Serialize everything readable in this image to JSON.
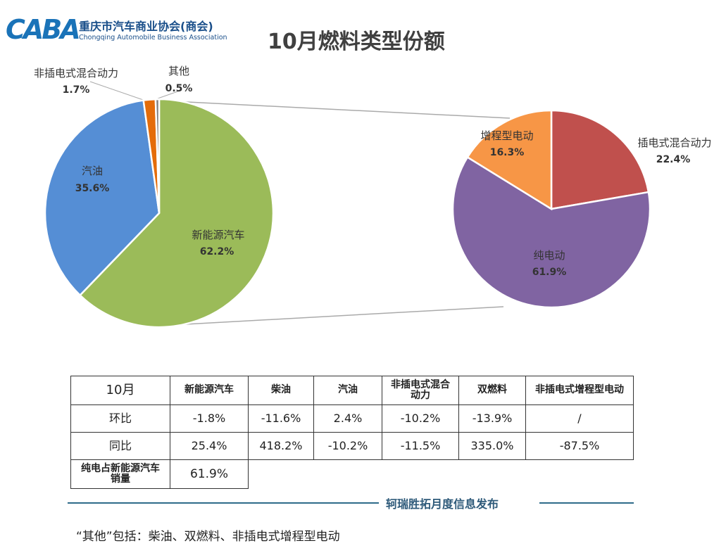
{
  "header": {
    "logo_mark": "CABA",
    "logo_cn": "重庆市汽车商业协会(商会)",
    "logo_en": "Chongqing Automobile Business Association",
    "title": "10月燃料类型份额"
  },
  "chart_data": [
    {
      "type": "pie",
      "slices": [
        {
          "label": "新能源汽车",
          "value": 62.2,
          "display": "62.2%",
          "color": "#9bbb59"
        },
        {
          "label": "汽油",
          "value": 35.6,
          "display": "35.6%",
          "color": "#558ed5"
        },
        {
          "label": "非插电式混合动力",
          "value": 1.7,
          "display": "1.7%",
          "color": "#e46c0a"
        },
        {
          "label": "其他",
          "value": 0.5,
          "display": "0.5%",
          "color": "#7f7f7f"
        }
      ]
    },
    {
      "type": "pie",
      "slices": [
        {
          "label": "插电式混合动力",
          "value": 22.4,
          "display": "22.4%",
          "color": "#c0504d"
        },
        {
          "label": "纯电动",
          "value": 61.9,
          "display": "61.9%",
          "color": "#8064a2"
        },
        {
          "label": "增程型电动",
          "value": 16.3,
          "display": "16.3%",
          "color": "#f79646"
        }
      ]
    }
  ],
  "table": {
    "header": [
      "10月",
      "新能源汽车",
      "柴油",
      "汽油",
      "非插电式混合动力",
      "双燃料",
      "非插电式增程型电动"
    ],
    "rows": [
      [
        "环比",
        "-1.8%",
        "-11.6%",
        "2.4%",
        "-10.2%",
        "-13.9%",
        "/"
      ],
      [
        "同比",
        "25.4%",
        "418.2%",
        "-10.2%",
        "-11.5%",
        "335.0%",
        "-87.5%"
      ]
    ],
    "nev_label": "纯电占新能源汽车销量",
    "nev_value": "61.9%"
  },
  "footer": {
    "publisher": "轲瑞胜拓月度信息发布",
    "note": "“其他”包括：柴油、双燃料、非插电式增程型电动"
  }
}
